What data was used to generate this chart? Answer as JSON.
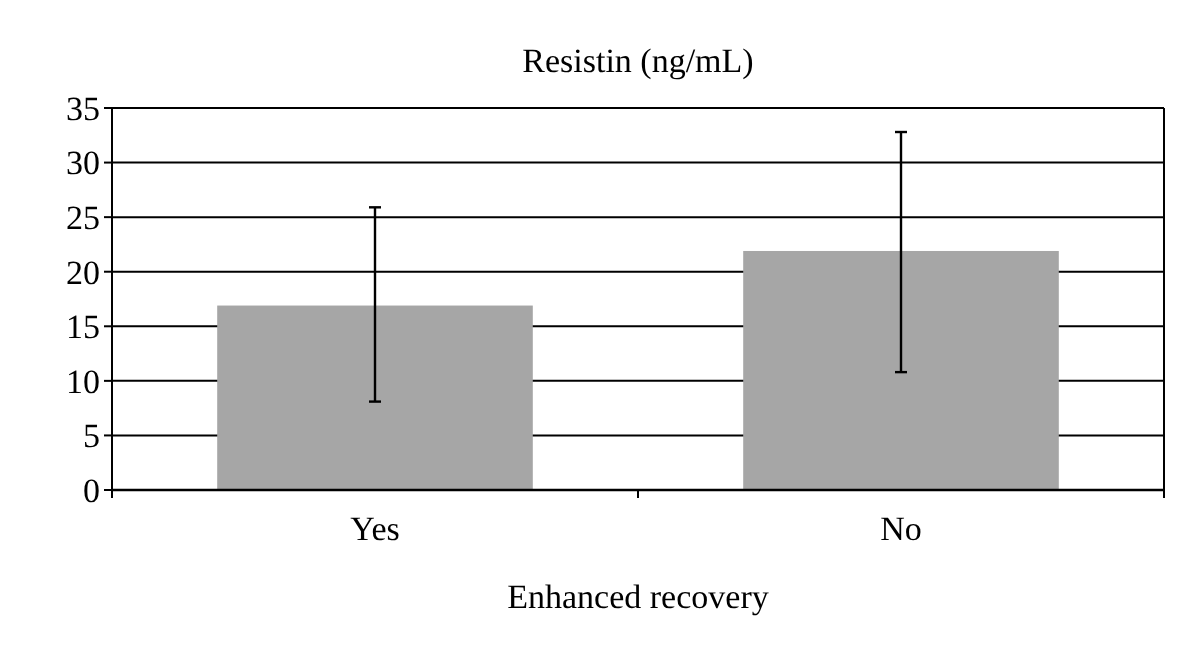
{
  "chart_data": {
    "type": "bar",
    "title": "Resistin (ng/mL)",
    "xlabel": "Enhanced recovery",
    "categories": [
      "Yes",
      "No"
    ],
    "values": [
      16.9,
      21.9
    ],
    "color": "#a6a6a6",
    "errors": [
      [
        8.1,
        25.9
      ],
      [
        10.8,
        32.8
      ]
    ],
    "ylim": [
      0,
      35
    ],
    "yticks": [
      0,
      5,
      10,
      15,
      20,
      25,
      30,
      35
    ],
    "grid": "y"
  }
}
